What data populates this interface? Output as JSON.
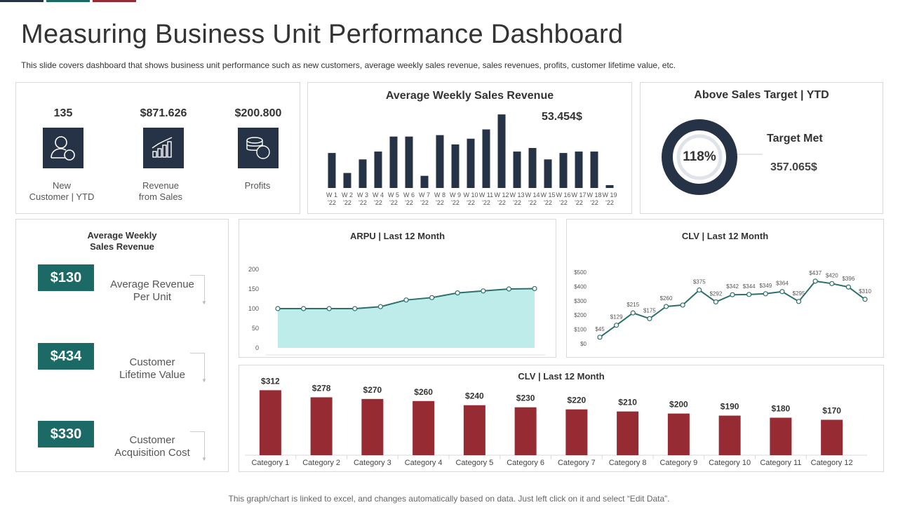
{
  "header": {
    "title": "Measuring Business Unit Performance Dashboard",
    "subtitle": "This slide covers dashboard that shows business unit performance such as new customers, average weekly sales revenue, sales revenues, profits, customer lifetime value, etc."
  },
  "colors": {
    "navy": "#263246",
    "teal": "#1c6a66",
    "maroon": "#962b33",
    "line": "#2c706c",
    "fill": "#bdeceb"
  },
  "kpis": [
    {
      "value": "135",
      "label_1": "New",
      "label_2": "Customer | YTD",
      "icon": "customer-icon"
    },
    {
      "value": "$871.626",
      "label_1": "Revenue",
      "label_2": "from Sales",
      "icon": "bar-chart-icon"
    },
    {
      "value": "$200.800",
      "label_1": "Profits",
      "label_2": "",
      "icon": "coins-icon"
    }
  ],
  "weekly": {
    "title": "Average Weekly Sales Revenue",
    "highlight": "53.454$"
  },
  "target": {
    "title": "Above Sales Target | YTD",
    "percent": "118%",
    "label": "Target Met",
    "value": "357.065$"
  },
  "avg_weekly": {
    "title_1": "Average Weekly",
    "title_2": "Sales Revenue",
    "items": [
      {
        "value": "$130",
        "label_1": "Average Revenue",
        "label_2": "Per Unit"
      },
      {
        "value": "$434",
        "label_1": "Customer",
        "label_2": "Lifetime Value"
      },
      {
        "value": "$330",
        "label_1": "Customer",
        "label_2": "Acquisition Cost"
      }
    ]
  },
  "arpu": {
    "title": "ARPU | Last 12 Month"
  },
  "clv_line": {
    "title": "CLV | Last 12 Month"
  },
  "clv_bar": {
    "title": "CLV | Last 12 Month"
  },
  "footer": {
    "note": "This graph/chart is linked to excel, and changes automatically based on data. Just left click on it and select “Edit Data”."
  },
  "chart_data": [
    {
      "type": "bar",
      "title": "Average Weekly Sales Revenue",
      "categories": [
        "W 1 '22",
        "W 2 '22",
        "W 3 '22",
        "W 4 '22",
        "W 5 '22",
        "W 6 '22",
        "W 7 '22",
        "W 8 '22",
        "W 9 '22",
        "W 10 '22",
        "W 11 '22",
        "W 12 '22",
        "W 13 '22",
        "W 14 '22",
        "W 15 '22",
        "W 16 '22",
        "W 17 '22",
        "W 18 '22",
        "W 19 '22"
      ],
      "tick_top": [
        "W 1",
        "W 2",
        "W 3",
        "W 4",
        "W 5",
        "W 6",
        "W 7",
        "W 8",
        "W 9",
        "W 10",
        "W 11",
        "W 12",
        "W 13",
        "W 14",
        "W 15",
        "W 16",
        "W 17",
        "W 18",
        "W 19"
      ],
      "tick_bottom": [
        "'22",
        "'22",
        "'22",
        "'22",
        "'22",
        "'22",
        "'22",
        "'22",
        "'22",
        "'22",
        "'22",
        "'22",
        "'22",
        "'22",
        "'22",
        "'22",
        "'22",
        "'22",
        "'22"
      ],
      "values": [
        49,
        21,
        40,
        51,
        72,
        72,
        17,
        74,
        61,
        69,
        82,
        103,
        51,
        56,
        40,
        49,
        51,
        51,
        4
      ],
      "ylim": [
        0,
        110
      ]
    },
    {
      "type": "area",
      "title": "ARPU | Last 12 Month",
      "values": [
        100,
        100,
        100,
        100,
        105,
        122,
        128,
        140,
        145,
        150,
        151
      ],
      "yticks": [
        "200",
        "150",
        "100",
        "50",
        "0"
      ],
      "ylim": [
        0,
        200
      ]
    },
    {
      "type": "line",
      "title": "CLV | Last 12 Month",
      "values": [
        45,
        129,
        215,
        175,
        260,
        270,
        375,
        292,
        342,
        344,
        349,
        364,
        295,
        437,
        420,
        396,
        310
      ],
      "labels": [
        "$45",
        "$129",
        "$215",
        "$175",
        "$260",
        "",
        "$375",
        "$292",
        "$342",
        "$344",
        "$349",
        "$364",
        "$295",
        "$437",
        "$420",
        "$396",
        "$310"
      ],
      "yticks": [
        "$500",
        "$400",
        "$300",
        "$200",
        "$100",
        "$0"
      ],
      "ylim": [
        0,
        500
      ]
    },
    {
      "type": "bar",
      "title": "CLV | Last 12 Month",
      "categories": [
        "Category 1",
        "Category 2",
        "Category 3",
        "Category 4",
        "Category 5",
        "Category 6",
        "Category 7",
        "Category 8",
        "Category 9",
        "Category 10",
        "Category 11",
        "Category 12"
      ],
      "values": [
        312,
        278,
        270,
        260,
        240,
        230,
        220,
        210,
        200,
        190,
        180,
        170
      ],
      "labels": [
        "$312",
        "$278",
        "$270",
        "$260",
        "$240",
        "$230",
        "$220",
        "$210",
        "$200",
        "$190",
        "$180",
        "$170"
      ],
      "ylim": [
        0,
        330
      ]
    }
  ]
}
